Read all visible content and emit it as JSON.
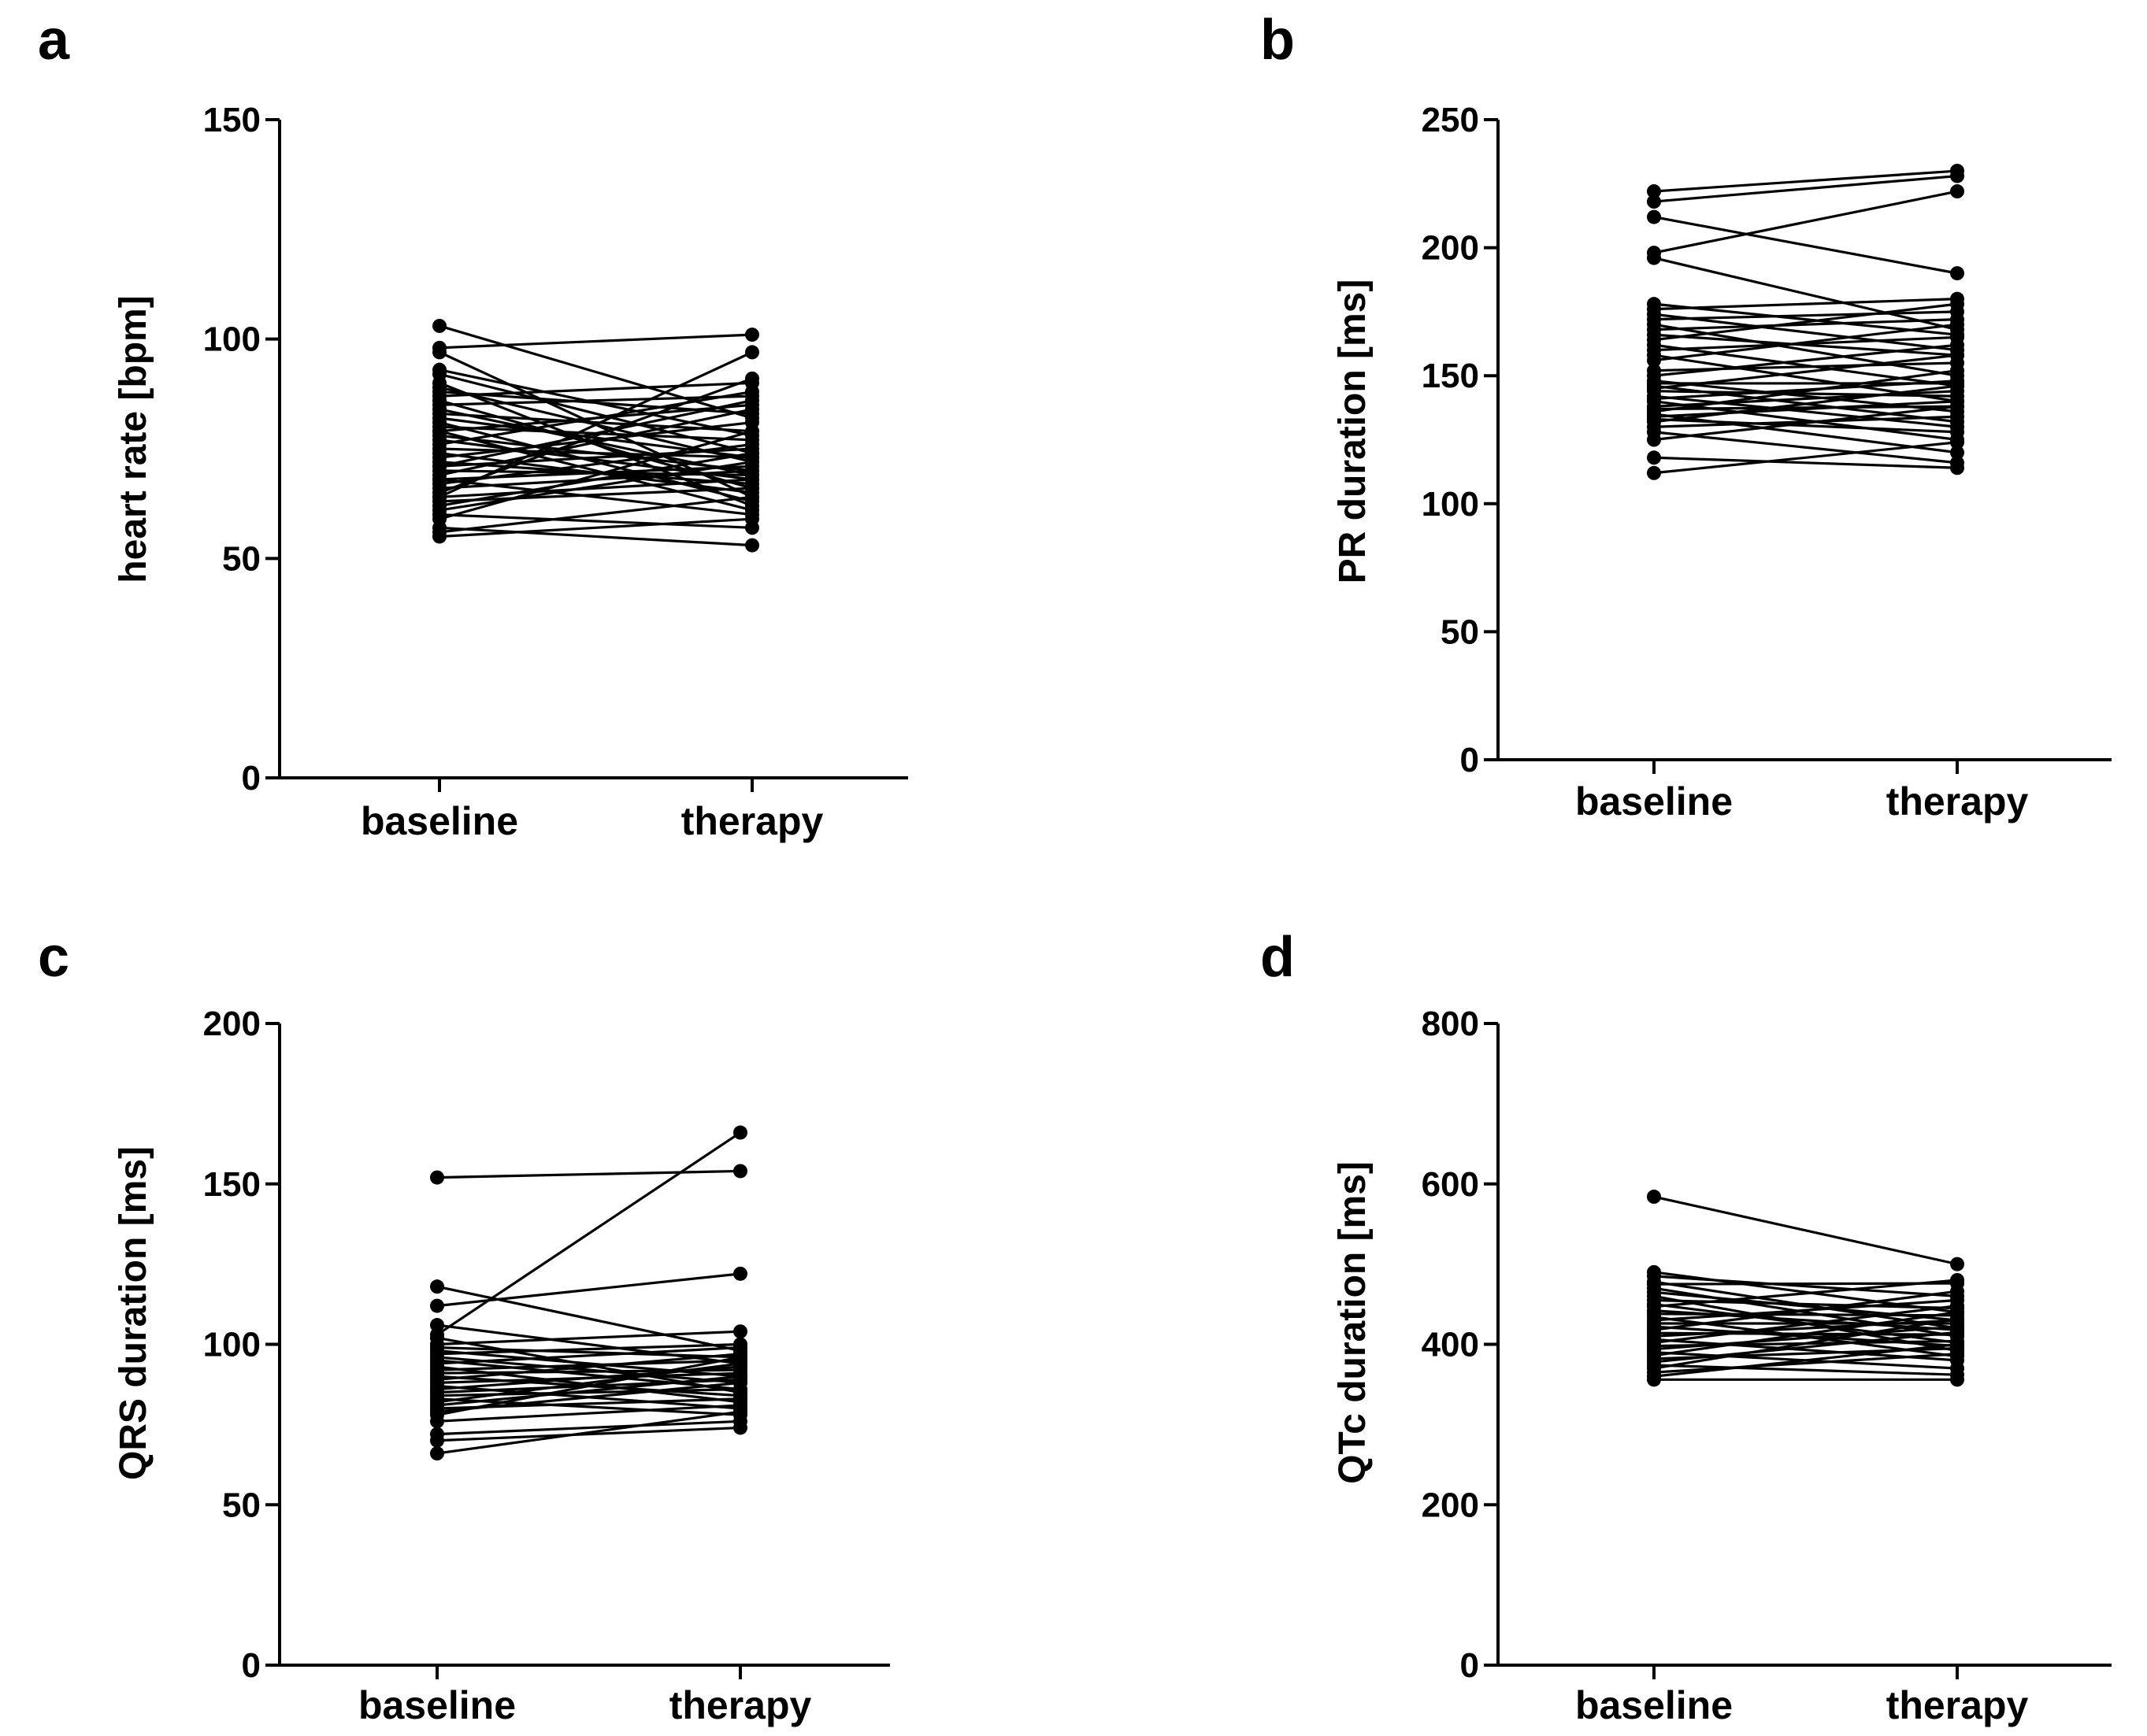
{
  "chart_data": [
    {
      "type": "line",
      "panel": "a",
      "ylabel": "heart rate [bpm]",
      "categories": [
        "baseline",
        "therapy"
      ],
      "ylim": [
        0,
        150
      ],
      "yticks": [
        0,
        50,
        100,
        150
      ],
      "pairs": [
        [
          103,
          82
        ],
        [
          97,
          64
        ],
        [
          93,
          78
        ],
        [
          92,
          74
        ],
        [
          90,
          62
        ],
        [
          89,
          72
        ],
        [
          88,
          83
        ],
        [
          87,
          90
        ],
        [
          86,
          66
        ],
        [
          85,
          87
        ],
        [
          84,
          69
        ],
        [
          83,
          79
        ],
        [
          82,
          73
        ],
        [
          81,
          63
        ],
        [
          80,
          77
        ],
        [
          79,
          85
        ],
        [
          78,
          70
        ],
        [
          77,
          68
        ],
        [
          76,
          88
        ],
        [
          75,
          73
        ],
        [
          74,
          65
        ],
        [
          73,
          81
        ],
        [
          72,
          67
        ],
        [
          71,
          75
        ],
        [
          70,
          69
        ],
        [
          69,
          84
        ],
        [
          68,
          71
        ],
        [
          68,
          60
        ],
        [
          67,
          76
        ],
        [
          66,
          70
        ],
        [
          65,
          91
        ],
        [
          64,
          68
        ],
        [
          63,
          66
        ],
        [
          62,
          74
        ],
        [
          61,
          72
        ],
        [
          60,
          57
        ],
        [
          59,
          79
        ],
        [
          57,
          53
        ],
        [
          56,
          64
        ],
        [
          55,
          59
        ],
        [
          98,
          101
        ],
        [
          64,
          97
        ],
        [
          71,
          86
        ],
        [
          79,
          61
        ]
      ]
    },
    {
      "type": "line",
      "panel": "b",
      "ylabel": "PR duration [ms]",
      "categories": [
        "baseline",
        "therapy"
      ],
      "ylim": [
        0,
        250
      ],
      "yticks": [
        0,
        50,
        100,
        150,
        200,
        250
      ],
      "pairs": [
        [
          222,
          230
        ],
        [
          218,
          228
        ],
        [
          212,
          190
        ],
        [
          198,
          222
        ],
        [
          196,
          168
        ],
        [
          178,
          166
        ],
        [
          176,
          180
        ],
        [
          174,
          160
        ],
        [
          172,
          175
        ],
        [
          170,
          150
        ],
        [
          168,
          172
        ],
        [
          166,
          158
        ],
        [
          164,
          178
        ],
        [
          162,
          146
        ],
        [
          160,
          165
        ],
        [
          158,
          140
        ],
        [
          156,
          170
        ],
        [
          152,
          155
        ],
        [
          150,
          162
        ],
        [
          148,
          136
        ],
        [
          147,
          147
        ],
        [
          146,
          132
        ],
        [
          145,
          158
        ],
        [
          144,
          142
        ],
        [
          142,
          130
        ],
        [
          141,
          148
        ],
        [
          140,
          125
        ],
        [
          138,
          144
        ],
        [
          137,
          138
        ],
        [
          136,
          152
        ],
        [
          135,
          120
        ],
        [
          134,
          140
        ],
        [
          133,
          128
        ],
        [
          132,
          146
        ],
        [
          130,
          134
        ],
        [
          128,
          116
        ],
        [
          125,
          138
        ],
        [
          118,
          114
        ],
        [
          112,
          124
        ]
      ]
    },
    {
      "type": "line",
      "panel": "c",
      "ylabel": "QRS duration [ms]",
      "categories": [
        "baseline",
        "therapy"
      ],
      "ylim": [
        0,
        200
      ],
      "yticks": [
        0,
        50,
        100,
        150,
        200
      ],
      "pairs": [
        [
          152,
          154
        ],
        [
          118,
          98
        ],
        [
          112,
          122
        ],
        [
          106,
          94
        ],
        [
          103,
          166
        ],
        [
          102,
          85
        ],
        [
          100,
          104
        ],
        [
          99,
          96
        ],
        [
          98,
          90
        ],
        [
          97,
          100
        ],
        [
          96,
          88
        ],
        [
          95,
          86
        ],
        [
          94,
          99
        ],
        [
          93,
          82
        ],
        [
          92,
          95
        ],
        [
          91,
          92
        ],
        [
          90,
          84
        ],
        [
          89,
          97
        ],
        [
          88,
          91
        ],
        [
          87,
          80
        ],
        [
          86,
          93
        ],
        [
          85,
          89
        ],
        [
          84,
          86
        ],
        [
          83,
          78
        ],
        [
          82,
          94
        ],
        [
          81,
          90
        ],
        [
          80,
          83
        ],
        [
          79,
          88
        ],
        [
          78,
          96
        ],
        [
          76,
          81
        ],
        [
          72,
          76
        ],
        [
          70,
          74
        ],
        [
          66,
          79
        ]
      ]
    },
    {
      "type": "line",
      "panel": "d",
      "ylabel": "QTc duration [ms]",
      "categories": [
        "baseline",
        "therapy"
      ],
      "ylim": [
        0,
        800
      ],
      "yticks": [
        0,
        200,
        400,
        600,
        800
      ],
      "pairs": [
        [
          584,
          500
        ],
        [
          490,
          440
        ],
        [
          485,
          460
        ],
        [
          478,
          420
        ],
        [
          475,
          476
        ],
        [
          470,
          410
        ],
        [
          465,
          430
        ],
        [
          460,
          392
        ],
        [
          455,
          445
        ],
        [
          450,
          402
        ],
        [
          447,
          480
        ],
        [
          442,
          418
        ],
        [
          438,
          436
        ],
        [
          434,
          385
        ],
        [
          430,
          455
        ],
        [
          426,
          426
        ],
        [
          422,
          398
        ],
        [
          418,
          466
        ],
        [
          414,
          412
        ],
        [
          410,
          430
        ],
        [
          406,
          380
        ],
        [
          402,
          448
        ],
        [
          398,
          404
        ],
        [
          394,
          422
        ],
        [
          390,
          370
        ],
        [
          386,
          440
        ],
        [
          382,
          395
        ],
        [
          378,
          415
        ],
        [
          374,
          362
        ],
        [
          370,
          432
        ],
        [
          365,
          388
        ],
        [
          360,
          400
        ],
        [
          356,
          356
        ]
      ]
    }
  ]
}
